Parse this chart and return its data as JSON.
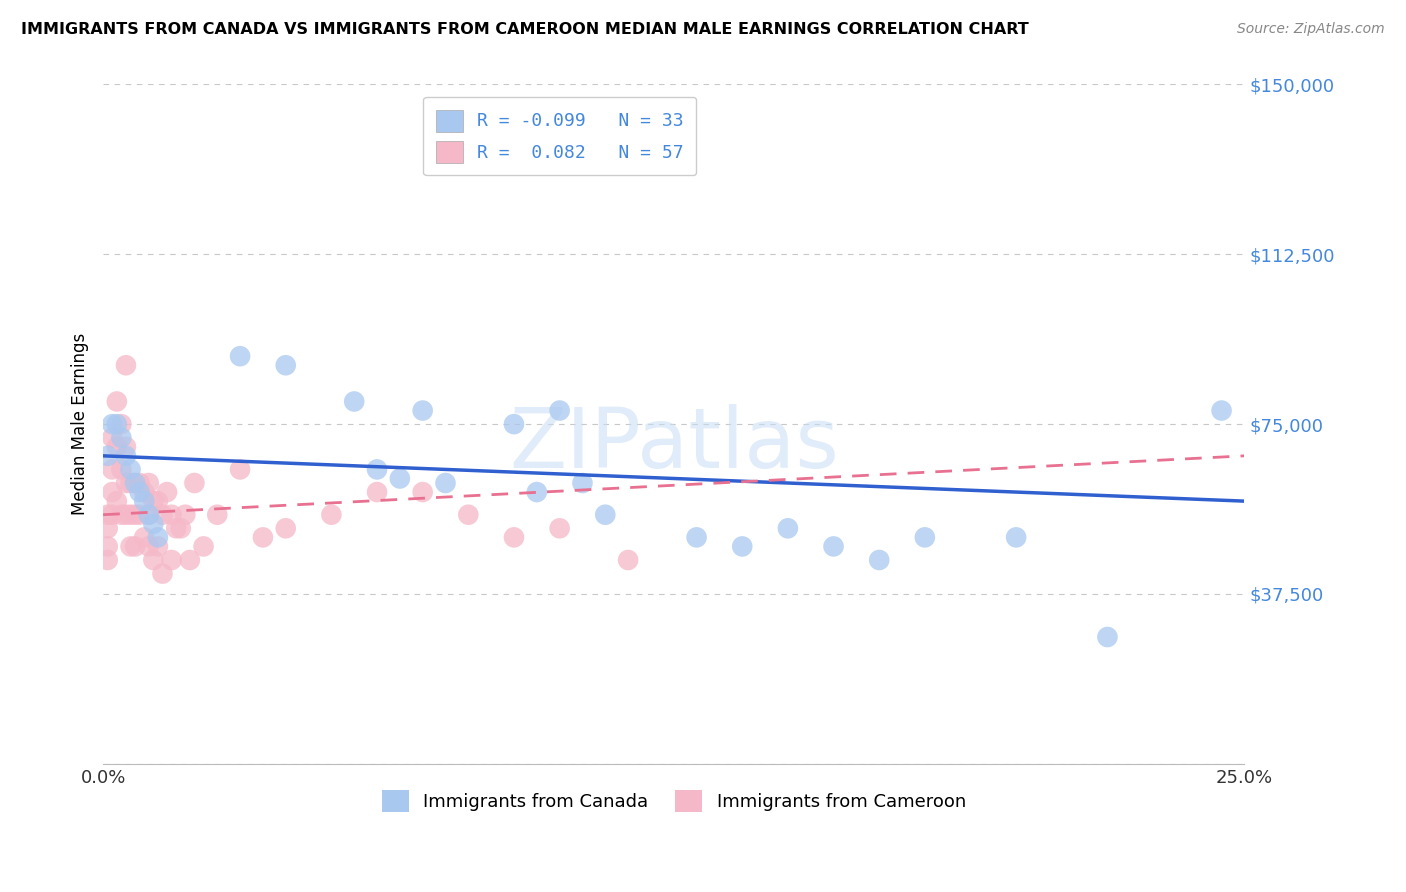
{
  "title": "IMMIGRANTS FROM CANADA VS IMMIGRANTS FROM CAMEROON MEDIAN MALE EARNINGS CORRELATION CHART",
  "source": "Source: ZipAtlas.com",
  "xlabel": "",
  "ylabel": "Median Male Earnings",
  "xlim": [
    0.0,
    0.25
  ],
  "ylim": [
    0,
    150000
  ],
  "yticks": [
    0,
    37500,
    75000,
    112500,
    150000
  ],
  "ytick_labels": [
    "",
    "$37,500",
    "$75,000",
    "$112,500",
    "$150,000"
  ],
  "xticks": [
    0.0,
    0.05,
    0.1,
    0.15,
    0.2,
    0.25
  ],
  "xtick_labels": [
    "0.0%",
    "",
    "",
    "",
    "",
    "25.0%"
  ],
  "canada_R": -0.099,
  "canada_N": 33,
  "cameroon_R": 0.082,
  "cameroon_N": 57,
  "canada_color": "#a8c8f0",
  "cameroon_color": "#f5b8c8",
  "canada_line_color": "#3060d0",
  "cameroon_line_color": "#e87090",
  "legend_label_canada": "Immigrants from Canada",
  "legend_label_cameroon": "Immigrants from Cameroon",
  "watermark": "ZIPatlas",
  "background_color": "#ffffff",
  "grid_color": "#c8c8c8",
  "tick_label_color": "#4488dd",
  "canada_scatter_x": [
    0.001,
    0.002,
    0.003,
    0.004,
    0.005,
    0.006,
    0.007,
    0.008,
    0.009,
    0.01,
    0.011,
    0.012,
    0.03,
    0.04,
    0.055,
    0.06,
    0.065,
    0.07,
    0.075,
    0.09,
    0.095,
    0.1,
    0.105,
    0.11,
    0.13,
    0.14,
    0.15,
    0.16,
    0.17,
    0.18,
    0.2,
    0.22,
    0.245
  ],
  "canada_scatter_y": [
    68000,
    75000,
    75000,
    72000,
    68000,
    65000,
    62000,
    60000,
    58000,
    55000,
    53000,
    50000,
    90000,
    88000,
    80000,
    65000,
    63000,
    78000,
    62000,
    75000,
    60000,
    78000,
    62000,
    55000,
    50000,
    48000,
    52000,
    48000,
    45000,
    50000,
    50000,
    28000,
    78000
  ],
  "cameroon_scatter_x": [
    0.001,
    0.001,
    0.001,
    0.001,
    0.002,
    0.002,
    0.002,
    0.002,
    0.003,
    0.003,
    0.003,
    0.004,
    0.004,
    0.004,
    0.005,
    0.005,
    0.005,
    0.005,
    0.006,
    0.006,
    0.006,
    0.007,
    0.007,
    0.007,
    0.008,
    0.008,
    0.009,
    0.009,
    0.01,
    0.01,
    0.01,
    0.011,
    0.011,
    0.012,
    0.012,
    0.013,
    0.013,
    0.014,
    0.015,
    0.015,
    0.016,
    0.017,
    0.018,
    0.019,
    0.02,
    0.022,
    0.025,
    0.03,
    0.035,
    0.04,
    0.05,
    0.06,
    0.07,
    0.08,
    0.09,
    0.1,
    0.115
  ],
  "cameroon_scatter_y": [
    55000,
    52000,
    48000,
    45000,
    72000,
    65000,
    60000,
    55000,
    80000,
    70000,
    58000,
    75000,
    65000,
    55000,
    88000,
    70000,
    62000,
    55000,
    62000,
    55000,
    48000,
    62000,
    55000,
    48000,
    62000,
    55000,
    60000,
    50000,
    62000,
    55000,
    48000,
    58000,
    45000,
    58000,
    48000,
    55000,
    42000,
    60000,
    55000,
    45000,
    52000,
    52000,
    55000,
    45000,
    62000,
    48000,
    55000,
    65000,
    50000,
    52000,
    55000,
    60000,
    60000,
    55000,
    50000,
    52000,
    45000
  ],
  "canada_trend_x": [
    0.0,
    0.25
  ],
  "canada_trend_y": [
    68000,
    58000
  ],
  "cameroon_trend_x": [
    0.0,
    0.25
  ],
  "cameroon_trend_y": [
    55000,
    68000
  ]
}
